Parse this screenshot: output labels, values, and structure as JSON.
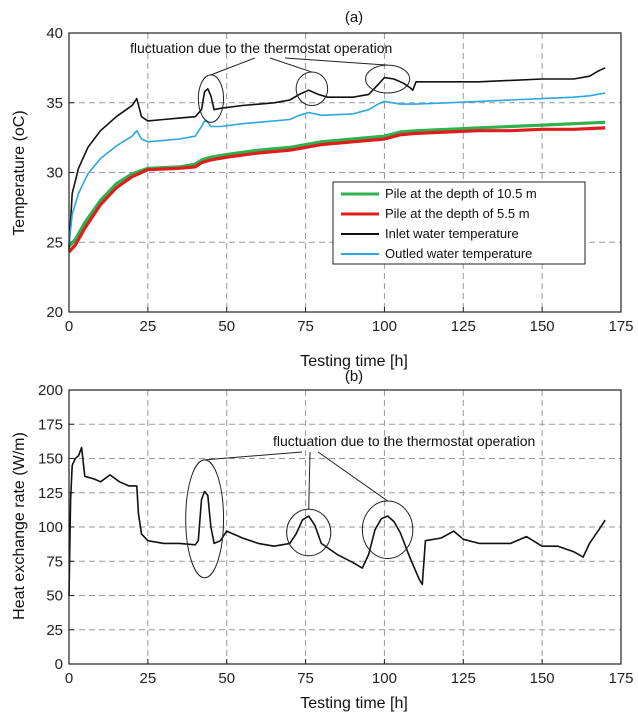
{
  "chart_data": [
    {
      "type": "line",
      "panel_label": "(a)",
      "xlabel": "Testing time [h]",
      "ylabel": "Temperature (oC)",
      "xlim": [
        0,
        175
      ],
      "ylim": [
        20,
        40
      ],
      "xticks": [
        0,
        25,
        50,
        75,
        100,
        125,
        150,
        175
      ],
      "yticks": [
        20,
        25,
        30,
        35,
        40
      ],
      "grid": true,
      "legend_position": "right-center",
      "annotation": "fluctuation due to the thermostat operation",
      "highlights": [
        {
          "x": 45,
          "y": 35.3,
          "rx": 4,
          "ry": 1.7
        },
        {
          "x": 77,
          "y": 36.0,
          "rx": 5,
          "ry": 1.2
        },
        {
          "x": 101,
          "y": 36.7,
          "rx": 7,
          "ry": 1.0
        }
      ],
      "series": [
        {
          "name": "Pile at the depth of 10.5 m",
          "color": "#2db24e",
          "points": [
            [
              0,
              24.7
            ],
            [
              2,
              25.2
            ],
            [
              5,
              26.4
            ],
            [
              10,
              28.0
            ],
            [
              15,
              29.2
            ],
            [
              20,
              29.9
            ],
            [
              25,
              30.3
            ],
            [
              30,
              30.35
            ],
            [
              35,
              30.4
            ],
            [
              40,
              30.6
            ],
            [
              42,
              30.9
            ],
            [
              45,
              31.1
            ],
            [
              50,
              31.3
            ],
            [
              60,
              31.6
            ],
            [
              70,
              31.8
            ],
            [
              75,
              32.0
            ],
            [
              80,
              32.2
            ],
            [
              90,
              32.4
            ],
            [
              100,
              32.6
            ],
            [
              105,
              32.9
            ],
            [
              110,
              33.0
            ],
            [
              120,
              33.1
            ],
            [
              130,
              33.2
            ],
            [
              140,
              33.3
            ],
            [
              150,
              33.4
            ],
            [
              160,
              33.5
            ],
            [
              170,
              33.6
            ]
          ]
        },
        {
          "name": "Pile at the depth of 5.5 m",
          "color": "#e01c1c",
          "points": [
            [
              0,
              24.3
            ],
            [
              2,
              24.8
            ],
            [
              5,
              26.0
            ],
            [
              10,
              27.7
            ],
            [
              15,
              28.9
            ],
            [
              20,
              29.7
            ],
            [
              25,
              30.2
            ],
            [
              30,
              30.25
            ],
            [
              35,
              30.3
            ],
            [
              40,
              30.4
            ],
            [
              42,
              30.7
            ],
            [
              45,
              30.9
            ],
            [
              50,
              31.1
            ],
            [
              60,
              31.4
            ],
            [
              70,
              31.6
            ],
            [
              75,
              31.8
            ],
            [
              80,
              32.0
            ],
            [
              90,
              32.2
            ],
            [
              100,
              32.4
            ],
            [
              105,
              32.7
            ],
            [
              110,
              32.8
            ],
            [
              120,
              32.9
            ],
            [
              130,
              33.0
            ],
            [
              140,
              33.0
            ],
            [
              150,
              33.1
            ],
            [
              160,
              33.1
            ],
            [
              170,
              33.2
            ]
          ]
        },
        {
          "name": "Inlet water temperature",
          "color": "#111111",
          "points": [
            [
              0,
              24.5
            ],
            [
              1,
              28.5
            ],
            [
              3,
              30.3
            ],
            [
              6,
              31.8
            ],
            [
              10,
              33.0
            ],
            [
              15,
              34.0
            ],
            [
              20,
              34.8
            ],
            [
              21.5,
              35.3
            ],
            [
              23,
              34.0
            ],
            [
              25,
              33.7
            ],
            [
              30,
              33.8
            ],
            [
              35,
              33.9
            ],
            [
              40,
              34.0
            ],
            [
              42,
              34.5
            ],
            [
              43,
              35.8
            ],
            [
              44,
              36.0
            ],
            [
              45,
              35.5
            ],
            [
              46,
              34.5
            ],
            [
              48,
              34.6
            ],
            [
              55,
              34.8
            ],
            [
              65,
              35.0
            ],
            [
              70,
              35.2
            ],
            [
              73,
              35.6
            ],
            [
              76,
              35.9
            ],
            [
              79,
              35.6
            ],
            [
              82,
              35.4
            ],
            [
              90,
              35.4
            ],
            [
              95,
              35.6
            ],
            [
              98,
              36.3
            ],
            [
              100,
              36.8
            ],
            [
              103,
              36.7
            ],
            [
              106,
              36.4
            ],
            [
              108,
              36.1
            ],
            [
              109,
              35.9
            ],
            [
              110,
              36.5
            ],
            [
              120,
              36.5
            ],
            [
              130,
              36.5
            ],
            [
              140,
              36.6
            ],
            [
              150,
              36.7
            ],
            [
              160,
              36.7
            ],
            [
              165,
              36.9
            ],
            [
              168,
              37.3
            ],
            [
              170,
              37.5
            ]
          ]
        },
        {
          "name": "Outled water temperature",
          "color": "#2aa8df",
          "points": [
            [
              0,
              24.8
            ],
            [
              1,
              27.0
            ],
            [
              3,
              28.5
            ],
            [
              6,
              29.9
            ],
            [
              10,
              31.0
            ],
            [
              15,
              31.9
            ],
            [
              20,
              32.6
            ],
            [
              21.5,
              33.0
            ],
            [
              23,
              32.4
            ],
            [
              25,
              32.2
            ],
            [
              30,
              32.3
            ],
            [
              35,
              32.4
            ],
            [
              40,
              32.6
            ],
            [
              42,
              33.3
            ],
            [
              43,
              33.7
            ],
            [
              44,
              33.6
            ],
            [
              45,
              33.3
            ],
            [
              48,
              33.3
            ],
            [
              55,
              33.5
            ],
            [
              65,
              33.7
            ],
            [
              70,
              33.8
            ],
            [
              73,
              34.1
            ],
            [
              76,
              34.3
            ],
            [
              80,
              34.1
            ],
            [
              90,
              34.2
            ],
            [
              95,
              34.5
            ],
            [
              98,
              34.9
            ],
            [
              100,
              35.1
            ],
            [
              105,
              34.9
            ],
            [
              110,
              34.9
            ],
            [
              120,
              35.0
            ],
            [
              130,
              35.1
            ],
            [
              140,
              35.2
            ],
            [
              150,
              35.3
            ],
            [
              160,
              35.4
            ],
            [
              165,
              35.5
            ],
            [
              170,
              35.7
            ]
          ]
        }
      ]
    },
    {
      "type": "line",
      "panel_label": "(b)",
      "xlabel": "Testing time [h]",
      "ylabel": "Heat exchange rate (W/m)",
      "xlim": [
        0,
        175
      ],
      "ylim": [
        0,
        200
      ],
      "xticks": [
        0,
        25,
        50,
        75,
        100,
        125,
        150,
        175
      ],
      "yticks": [
        0,
        25,
        50,
        75,
        100,
        125,
        150,
        175,
        200
      ],
      "grid": true,
      "annotation": "fluctuation due to the thermostat operation",
      "highlights": [
        {
          "x": 43,
          "y": 106,
          "rx": 6,
          "ry": 43
        },
        {
          "x": 76,
          "y": 96,
          "rx": 7,
          "ry": 17
        },
        {
          "x": 101,
          "y": 98,
          "rx": 8,
          "ry": 21
        }
      ],
      "series": [
        {
          "name": "",
          "color": "#111111",
          "points": [
            [
              0,
              50
            ],
            [
              0.5,
              120
            ],
            [
              1,
              145
            ],
            [
              2,
              150
            ],
            [
              3,
              152
            ],
            [
              4,
              158
            ],
            [
              5,
              137
            ],
            [
              8,
              135
            ],
            [
              10,
              133
            ],
            [
              13,
              138
            ],
            [
              16,
              133
            ],
            [
              19,
              130
            ],
            [
              21.5,
              130
            ],
            [
              22,
              110
            ],
            [
              23,
              95
            ],
            [
              25,
              90
            ],
            [
              30,
              88
            ],
            [
              35,
              88
            ],
            [
              40,
              87
            ],
            [
              41,
              90
            ],
            [
              42,
              120
            ],
            [
              43,
              126
            ],
            [
              44,
              123
            ],
            [
              45,
              100
            ],
            [
              46,
              88
            ],
            [
              48,
              90
            ],
            [
              50,
              97
            ],
            [
              55,
              92
            ],
            [
              60,
              88
            ],
            [
              65,
              86
            ],
            [
              70,
              88
            ],
            [
              72,
              95
            ],
            [
              74,
              105
            ],
            [
              76,
              108
            ],
            [
              78,
              101
            ],
            [
              80,
              88
            ],
            [
              85,
              80
            ],
            [
              90,
              74
            ],
            [
              93,
              70
            ],
            [
              95,
              80
            ],
            [
              97,
              98
            ],
            [
              99,
              106
            ],
            [
              101,
              108
            ],
            [
              103,
              104
            ],
            [
              105,
              96
            ],
            [
              108,
              78
            ],
            [
              111,
              62
            ],
            [
              112,
              58
            ],
            [
              113,
              90
            ],
            [
              118,
              92
            ],
            [
              122,
              97
            ],
            [
              125,
              91
            ],
            [
              130,
              88
            ],
            [
              135,
              88
            ],
            [
              140,
              88
            ],
            [
              145,
              93
            ],
            [
              150,
              86
            ],
            [
              155,
              86
            ],
            [
              160,
              82
            ],
            [
              163,
              78
            ],
            [
              165,
              88
            ],
            [
              168,
              98
            ],
            [
              170,
              105
            ]
          ]
        }
      ]
    }
  ]
}
